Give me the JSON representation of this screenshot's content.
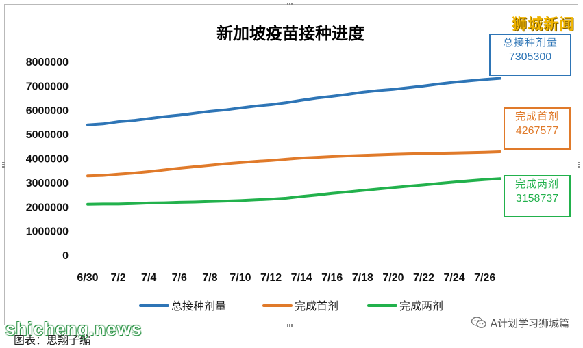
{
  "brand": "狮城新闻",
  "chart_data": {
    "type": "line",
    "title": "新加坡疫苗接种进度",
    "xlabel": "",
    "ylabel": "",
    "ylim": [
      0,
      8000000
    ],
    "yticks": [
      "8000000",
      "7000000",
      "6000000",
      "5000000",
      "4000000",
      "3000000",
      "2000000",
      "1000000",
      "0"
    ],
    "ytick_values": [
      8000000,
      7000000,
      6000000,
      5000000,
      4000000,
      3000000,
      2000000,
      1000000,
      0
    ],
    "x": [
      "6/30",
      "7/1",
      "7/2",
      "7/3",
      "7/4",
      "7/5",
      "7/6",
      "7/7",
      "7/8",
      "7/9",
      "7/10",
      "7/11",
      "7/12",
      "7/13",
      "7/14",
      "7/15",
      "7/16",
      "7/17",
      "7/18",
      "7/19",
      "7/20",
      "7/21",
      "7/22",
      "7/23",
      "7/24",
      "7/25",
      "7/26",
      "7/27"
    ],
    "xticks": [
      "6/30",
      "7/2",
      "7/4",
      "7/6",
      "7/8",
      "7/10",
      "7/12",
      "7/14",
      "7/16",
      "7/18",
      "7/20",
      "7/22",
      "7/24",
      "7/26"
    ],
    "grid": false,
    "legend": "bottom",
    "series": [
      {
        "name": "总接种剂量",
        "color": "#2e75b6",
        "values": [
          5380000,
          5420000,
          5510000,
          5560000,
          5640000,
          5720000,
          5780000,
          5860000,
          5940000,
          6000000,
          6080000,
          6160000,
          6220000,
          6300000,
          6400000,
          6490000,
          6560000,
          6640000,
          6730000,
          6800000,
          6850000,
          6920000,
          6990000,
          7070000,
          7140000,
          7200000,
          7260000,
          7305300
        ]
      },
      {
        "name": "完成首剂",
        "color": "#e07a2a",
        "values": [
          3270000,
          3290000,
          3340000,
          3390000,
          3450000,
          3520000,
          3590000,
          3650000,
          3710000,
          3770000,
          3820000,
          3870000,
          3910000,
          3960000,
          4010000,
          4040000,
          4070000,
          4100000,
          4120000,
          4140000,
          4160000,
          4180000,
          4190000,
          4210000,
          4220000,
          4235000,
          4250000,
          4267577
        ]
      },
      {
        "name": "完成两剂",
        "color": "#22b14c",
        "values": [
          2100000,
          2110000,
          2110000,
          2130000,
          2150000,
          2160000,
          2180000,
          2190000,
          2210000,
          2230000,
          2250000,
          2280000,
          2310000,
          2350000,
          2420000,
          2480000,
          2550000,
          2610000,
          2670000,
          2730000,
          2790000,
          2850000,
          2900000,
          2960000,
          3020000,
          3070000,
          3120000,
          3158737
        ]
      }
    ],
    "end_labels": [
      {
        "name": "总接种剂量",
        "value": "7305300",
        "color": "#2e75b6"
      },
      {
        "name": "完成首剂",
        "value": "4267577",
        "color": "#e07a2a"
      },
      {
        "name": "完成两剂",
        "value": "3158737",
        "color": "#22b14c"
      }
    ]
  },
  "watermark": "shicheng.news",
  "source_note": "图表：思翔子编",
  "wechat_account": "A计划学习狮城篇"
}
